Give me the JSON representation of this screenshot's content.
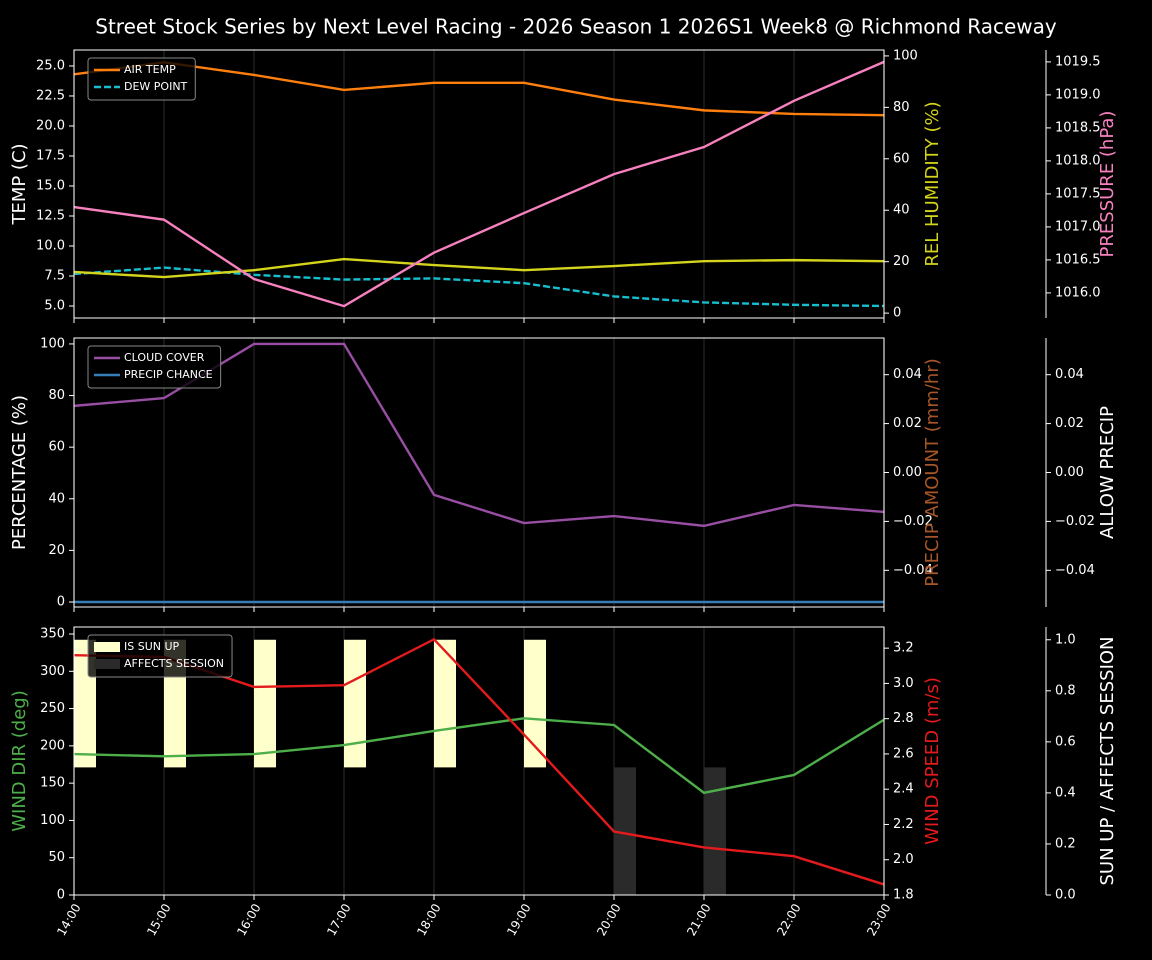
{
  "title": "Street Stock Series by Next Level Racing - 2026 Season 1 2026S1 Week8 @ Richmond Raceway",
  "chart_data": [
    {
      "type": "line",
      "grid": true,
      "ylabel": "TEMP (C)",
      "ylabel_color": "#ffffff",
      "ylim": [
        4.0,
        26.33
      ],
      "yticks": [
        {
          "value": 5,
          "label": "5.0"
        },
        7.5,
        {
          "value": 10,
          "label": "10.0"
        },
        12.5,
        {
          "value": 15,
          "label": "15.0"
        },
        17.5,
        {
          "value": 20,
          "label": "20.0"
        },
        22.5,
        {
          "value": 25,
          "label": "25.0"
        }
      ],
      "y2label": "REL HUMIDITY (%)",
      "y2label_color": "#d4d41c",
      "y2lim": [
        -1.9,
        102.3
      ],
      "y2ticks": [
        0,
        20,
        40,
        60,
        80,
        100
      ],
      "y3label": "PRESSURE (hPa)",
      "y3label_color": "#f781bf",
      "y3lim": [
        1015.62,
        1019.68
      ],
      "y3ticks": [
        {
          "value": 1016,
          "label": "1016.0"
        },
        1016.5,
        {
          "value": 1017,
          "label": "1017.0"
        },
        1017.5,
        {
          "value": 1018,
          "label": "1018.0"
        },
        1018.5,
        {
          "value": 1019,
          "label": "1019.0"
        },
        1019.5
      ],
      "series": [
        {
          "name": "AIR TEMP",
          "color": "#ff7f0e",
          "values": [
            24.3,
            25.3,
            24.25,
            23.0,
            23.6,
            23.6,
            22.2,
            21.3,
            21.0,
            20.9
          ]
        },
        {
          "name": "DEW POINT",
          "color": "#17becf",
          "style": "dashed",
          "values": [
            7.67,
            8.2,
            7.6,
            7.2,
            7.3,
            6.9,
            5.8,
            5.3,
            5.1,
            5.0
          ]
        },
        {
          "color": "#d4d41c",
          "axis": "y2",
          "values": [
            16,
            14,
            16.7,
            21,
            18.7,
            16.7,
            18.3,
            20.2,
            20.6,
            20.2
          ]
        },
        {
          "color": "#f781bf",
          "axis": "y3",
          "values": [
            1017.3,
            1017.11,
            1016.21,
            1015.8,
            1016.61,
            1017.21,
            1017.8,
            1018.21,
            1018.91,
            1019.5
          ]
        }
      ]
    },
    {
      "type": "line",
      "grid": true,
      "ylabel": "PERCENTAGE (%)",
      "ylabel_color": "#ffffff",
      "ylim": [
        -1.94,
        102.3
      ],
      "yticks": [
        0,
        20,
        40,
        60,
        80,
        100
      ],
      "y2label": "PRECIP AMOUNT (mm/hr)",
      "y2label_color": "#a65628",
      "y2lim": [
        -0.055,
        0.055
      ],
      "y2ticks": [
        {
          "value": -0.04,
          "label": "−0.04"
        },
        {
          "value": -0.02,
          "label": "−0.02"
        },
        {
          "value": 0,
          "label": "0.00"
        },
        0.02,
        0.04
      ],
      "y3label": "ALLOW PRECIP",
      "y3label_color": "#ffffff",
      "y3lim": [
        -0.055,
        0.055
      ],
      "y3ticks": [
        {
          "value": -0.04,
          "label": "−0.04"
        },
        {
          "value": -0.02,
          "label": "−0.02"
        },
        {
          "value": 0,
          "label": "0.00"
        },
        0.02,
        0.04
      ],
      "series": [
        {
          "name": "CLOUD COVER",
          "color": "#984ea3",
          "values": [
            76,
            79,
            100,
            100,
            41.5,
            30.6,
            33.3,
            29.5,
            37.6,
            34.9
          ]
        },
        {
          "name": "PRECIP CHANCE",
          "color": "#377eb8",
          "values": [
            0,
            0,
            0,
            0,
            0,
            0,
            0,
            0,
            0,
            0
          ]
        }
      ]
    },
    {
      "type": "line",
      "grid": true,
      "categories": [
        "14:00",
        "15:00",
        "16:00",
        "17:00",
        "18:00",
        "19:00",
        "20:00",
        "21:00",
        "22:00",
        "23:00"
      ],
      "ylabel": "WIND DIR (deg)",
      "ylabel_color": "#4daf4a",
      "ylim": [
        0,
        359.4
      ],
      "yticks": [
        0,
        50,
        100,
        150,
        200,
        250,
        300,
        350
      ],
      "y2label": "WIND SPEED (m/s)",
      "y2label_color": "#e41a1c",
      "y2lim": [
        1.8,
        3.32
      ],
      "y2ticks": [
        1.8,
        {
          "value": 2,
          "label": "2.0"
        },
        2.2,
        2.4,
        2.6,
        2.8,
        {
          "value": 3,
          "label": "3.0"
        },
        3.2
      ],
      "y3label": "SUN UP / AFFECTS SESSION",
      "y3label_color": "#ffffff",
      "y3lim": [
        0,
        1.05
      ],
      "y3ticks": [
        {
          "value": 0,
          "label": "0.0"
        },
        0.2,
        0.4,
        0.6,
        0.8,
        {
          "value": 1,
          "label": "1.0"
        }
      ],
      "series": [
        {
          "name": "IS SUN UP",
          "type": "bar",
          "axis": "y3",
          "base": 0.5,
          "color": "#ffffcc",
          "values": [
            1,
            1,
            1,
            1,
            1,
            1,
            0.5,
            0.5,
            0.5,
            0.5
          ]
        },
        {
          "name": "AFFECTS SESSION",
          "type": "bar",
          "axis": "y3",
          "base": 0,
          "color": "#2a2a2a",
          "values": [
            0,
            0,
            0,
            0,
            0,
            0,
            0.5,
            0.5,
            0,
            0
          ]
        },
        {
          "color": "#4daf4a",
          "values": [
            189,
            186,
            189,
            201,
            220,
            237,
            228,
            137,
            161,
            235
          ]
        },
        {
          "color": "#e41a1c",
          "axis": "y2",
          "values": [
            3.16,
            3.15,
            2.98,
            2.99,
            3.25,
            2.71,
            2.16,
            2.07,
            2.02,
            1.86
          ]
        }
      ]
    }
  ]
}
